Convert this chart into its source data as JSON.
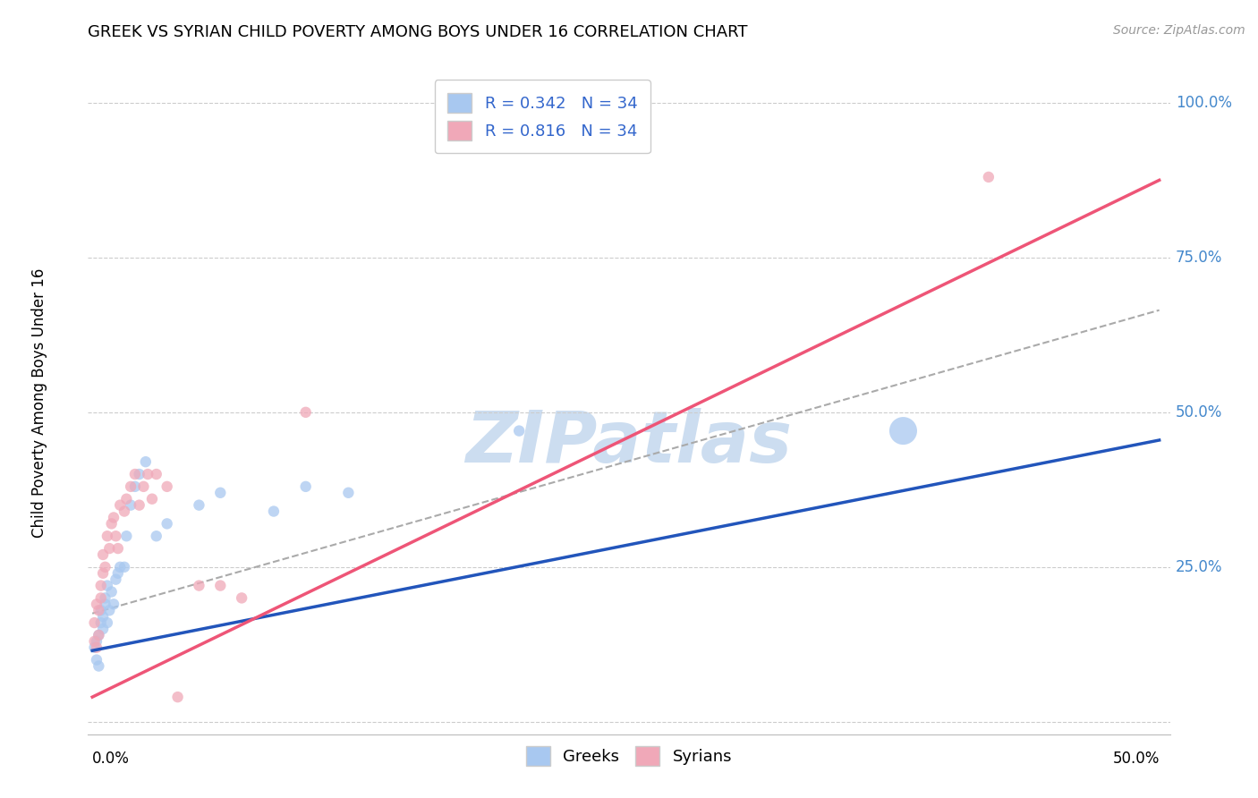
{
  "title": "GREEK VS SYRIAN CHILD POVERTY AMONG BOYS UNDER 16 CORRELATION CHART",
  "source": "Source: ZipAtlas.com",
  "ylabel": "Child Poverty Among Boys Under 16",
  "xlim": [
    0.0,
    0.5
  ],
  "ylim": [
    0.0,
    1.05
  ],
  "legend_r_greek": "0.342",
  "legend_n_greek": "34",
  "legend_r_syrian": "0.816",
  "legend_n_syrian": "34",
  "greek_color": "#a8c8f0",
  "syrian_color": "#f0a8b8",
  "greek_line_color": "#2255bb",
  "syrian_line_color": "#ee5577",
  "dashed_line_color": "#aaaaaa",
  "watermark_color": "#ccddf0",
  "greek_line_x0": 0.0,
  "greek_line_y0": 0.115,
  "greek_line_x1": 0.5,
  "greek_line_y1": 0.455,
  "syrian_line_x0": 0.0,
  "syrian_line_y0": 0.04,
  "syrian_line_x1": 0.5,
  "syrian_line_y1": 0.875,
  "dashed_line_x0": 0.0,
  "dashed_line_y0": 0.175,
  "dashed_line_x1": 0.5,
  "dashed_line_y1": 0.665,
  "greeks_x": [
    0.001,
    0.002,
    0.002,
    0.003,
    0.003,
    0.004,
    0.004,
    0.005,
    0.005,
    0.006,
    0.006,
    0.007,
    0.007,
    0.008,
    0.009,
    0.01,
    0.011,
    0.012,
    0.013,
    0.015,
    0.016,
    0.018,
    0.02,
    0.022,
    0.025,
    0.03,
    0.035,
    0.05,
    0.06,
    0.085,
    0.1,
    0.12,
    0.2,
    0.38
  ],
  "greeks_y": [
    0.12,
    0.1,
    0.13,
    0.09,
    0.14,
    0.16,
    0.18,
    0.15,
    0.17,
    0.19,
    0.2,
    0.16,
    0.22,
    0.18,
    0.21,
    0.19,
    0.23,
    0.24,
    0.25,
    0.25,
    0.3,
    0.35,
    0.38,
    0.4,
    0.42,
    0.3,
    0.32,
    0.35,
    0.37,
    0.34,
    0.38,
    0.37,
    0.47,
    0.47
  ],
  "greeks_size": [
    80,
    80,
    80,
    80,
    80,
    80,
    80,
    80,
    80,
    80,
    80,
    80,
    80,
    80,
    80,
    80,
    80,
    80,
    80,
    80,
    80,
    80,
    80,
    80,
    80,
    80,
    80,
    80,
    80,
    80,
    80,
    80,
    80,
    500
  ],
  "syrians_x": [
    0.001,
    0.001,
    0.002,
    0.002,
    0.003,
    0.003,
    0.004,
    0.004,
    0.005,
    0.005,
    0.006,
    0.007,
    0.008,
    0.009,
    0.01,
    0.011,
    0.012,
    0.013,
    0.015,
    0.016,
    0.018,
    0.02,
    0.022,
    0.024,
    0.026,
    0.028,
    0.03,
    0.035,
    0.04,
    0.05,
    0.06,
    0.07,
    0.1,
    0.42
  ],
  "syrians_y": [
    0.13,
    0.16,
    0.12,
    0.19,
    0.14,
    0.18,
    0.2,
    0.22,
    0.24,
    0.27,
    0.25,
    0.3,
    0.28,
    0.32,
    0.33,
    0.3,
    0.28,
    0.35,
    0.34,
    0.36,
    0.38,
    0.4,
    0.35,
    0.38,
    0.4,
    0.36,
    0.4,
    0.38,
    0.04,
    0.22,
    0.22,
    0.2,
    0.5,
    0.88
  ],
  "syrians_size": [
    80,
    80,
    80,
    80,
    80,
    80,
    80,
    80,
    80,
    80,
    80,
    80,
    80,
    80,
    80,
    80,
    80,
    80,
    80,
    80,
    80,
    80,
    80,
    80,
    80,
    80,
    80,
    80,
    80,
    80,
    80,
    80,
    80,
    80
  ]
}
